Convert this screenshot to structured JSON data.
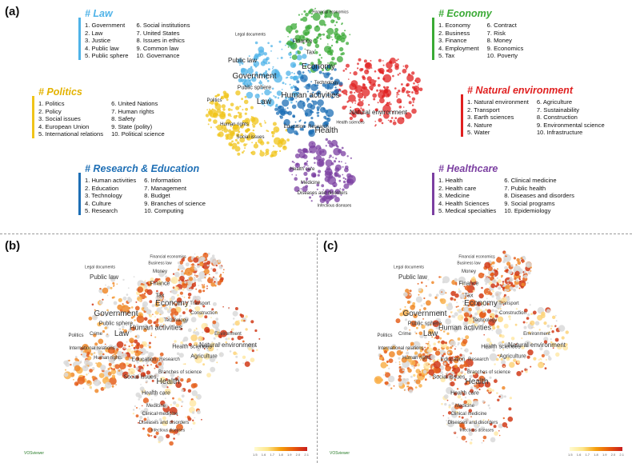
{
  "panels": {
    "a": "(a)",
    "b": "(b)",
    "c": "(c)"
  },
  "colors": {
    "law": "#4fb3e8",
    "economy": "#3aaa35",
    "politics": "#f0c419",
    "natural": "#e02020",
    "research": "#1e6fb5",
    "health": "#7b3fa1"
  },
  "legends": {
    "law": {
      "title": "# Law",
      "col1": [
        "1. Government",
        "2. Law",
        "3. Justice",
        "4. Public law",
        "5. Public sphere"
      ],
      "col2": [
        "6. Social institutions",
        "7. United States",
        "8. Issues in ethics",
        "9. Common law",
        "10. Governance"
      ]
    },
    "economy": {
      "title": "# Economy",
      "col1": [
        "1. Economy",
        "2. Business",
        "3. Finance",
        "4. Employment",
        "5. Tax"
      ],
      "col2": [
        "6. Contract",
        "7. Risk",
        "8. Money",
        "9. Economics",
        "10. Poverty"
      ]
    },
    "politics": {
      "title": "# Politics",
      "col1": [
        "1. Politics",
        "2. Policy",
        "3. Social issues",
        "4. European Union",
        "5. International relations"
      ],
      "col2": [
        "6. United Nations",
        "7. Human rights",
        "8. Safety",
        "9. State (polity)",
        "10. Political science"
      ]
    },
    "natural": {
      "title": "# Natural environment",
      "col1": [
        "1. Natural environment",
        "2. Transport",
        "3. Earth sciences",
        "4. Nature",
        "5. Water"
      ],
      "col2": [
        "6. Agriculture",
        "7. Sustainability",
        "8. Construction",
        "9. Environmental science",
        "10. Infrastructure"
      ]
    },
    "research": {
      "title": "# Research & Education",
      "col1": [
        "1. Human activities",
        "2. Education",
        "3. Technology",
        "4. Culture",
        "5. Research"
      ],
      "col2": [
        "6. Information",
        "7. Management",
        "8. Budget",
        "9. Branches of science",
        "10. Computing"
      ]
    },
    "health": {
      "title": "# Healthcare",
      "col1": [
        "1. Health",
        "2. Health care",
        "3. Medicine",
        "4. Health Sciences",
        "5. Medical specialties"
      ],
      "col2": [
        "6. Clinical medicine",
        "7. Public health",
        "8. Diseases and disorders",
        "9. Social programs",
        "10. Epidemiology"
      ]
    }
  },
  "map_a_labels": [
    "Government",
    "Law",
    "Economy",
    "Human activities",
    "Natural environment",
    "Health",
    "Public law",
    "Public sphere",
    "Finance",
    "Tax",
    "Politics",
    "Education",
    "Research",
    "Technology",
    "Social issues",
    "Human rights",
    "Health care",
    "Medicine",
    "Diseases and disorders",
    "Infectious diseases",
    "Legal documents",
    "Financial economics",
    "Health sciences"
  ],
  "map_bc_labels": [
    "Government",
    "Law",
    "Economy",
    "Human activities",
    "Natural environment",
    "Health",
    "Public law",
    "Public sphere",
    "Finance",
    "Money",
    "Tax",
    "Legal documents",
    "Business law",
    "Politics",
    "Crime",
    "Education",
    "Technology",
    "Social issues",
    "Human rights",
    "International relations",
    "Health care",
    "Medicine",
    "Clinical medicine",
    "Diseases and disorders",
    "Infectious diseases",
    "Agriculture",
    "Environment",
    "Construction",
    "Transport",
    "Health sciences",
    "Research",
    "Financial economics",
    "Branches of science"
  ],
  "watermark": "VOSviewer",
  "scale_ticks": [
    "1.5",
    "1.6",
    "1.7",
    "1.8",
    "1.9",
    "2.0",
    "2.1"
  ]
}
